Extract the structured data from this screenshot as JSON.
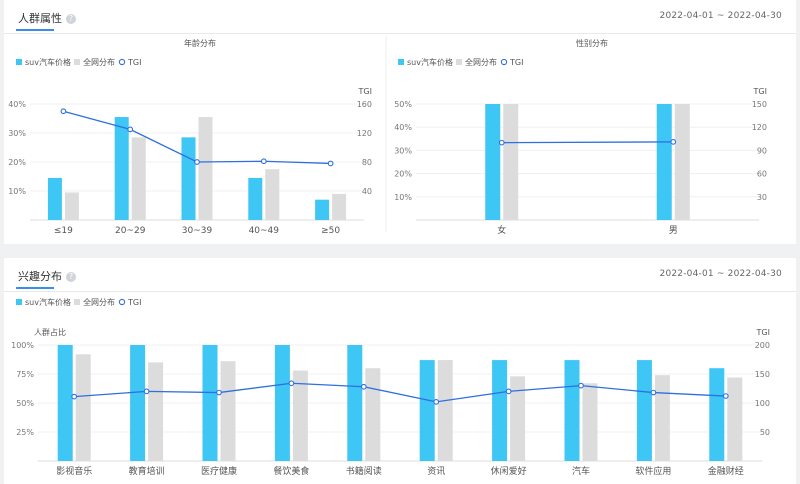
{
  "section1": {
    "title": "人群属性",
    "help": "?",
    "date_range": "2022-04-01 ~ 2022-04-30"
  },
  "section2": {
    "title": "兴趣分布",
    "help": "?",
    "date_range": "2022-04-01 ~ 2022-04-30"
  },
  "colors": {
    "suv": "#3ec6f5",
    "all": "#dcdcdc",
    "tgi": "#2f6fe0",
    "accent": "#3c8cf0"
  },
  "chart_data": [
    {
      "id": "age",
      "type": "bar",
      "title": "年龄分布",
      "legend": [
        "suv汽车价格",
        "全网分布",
        "TGI"
      ],
      "legend_position": "top-left",
      "categories": [
        "≤19",
        "20~29",
        "30~39",
        "40~49",
        "≥50"
      ],
      "series": [
        {
          "name": "suv汽车价格",
          "type": "bar",
          "values": [
            14.5,
            35.5,
            28.5,
            14.5,
            7
          ]
        },
        {
          "name": "全网分布",
          "type": "bar",
          "values": [
            9.5,
            28.5,
            35.5,
            17.5,
            9
          ]
        },
        {
          "name": "TGI",
          "type": "line",
          "axis": "right",
          "values": [
            150,
            125,
            80,
            81,
            78
          ]
        }
      ],
      "ylim": [
        0,
        40
      ],
      "yticks": [
        "10%",
        "20%",
        "30%",
        "40%"
      ],
      "y2label": "TGI",
      "y2lim": [
        0,
        160
      ],
      "y2ticks": [
        "40",
        "80",
        "120",
        "160"
      ]
    },
    {
      "id": "gender",
      "type": "bar",
      "title": "性别分布",
      "legend": [
        "suv汽车价格",
        "全网分布",
        "TGI"
      ],
      "legend_position": "top-left",
      "categories": [
        "女",
        "男"
      ],
      "series": [
        {
          "name": "suv汽车价格",
          "type": "bar",
          "values": [
            50,
            50
          ]
        },
        {
          "name": "全网分布",
          "type": "bar",
          "values": [
            50,
            50
          ]
        },
        {
          "name": "TGI",
          "type": "line",
          "axis": "right",
          "values": [
            100,
            101
          ]
        }
      ],
      "ylim": [
        0,
        50
      ],
      "yticks": [
        "10%",
        "20%",
        "30%",
        "40%",
        "50%"
      ],
      "y2label": "TGI",
      "y2lim": [
        0,
        150
      ],
      "y2ticks": [
        "30",
        "60",
        "90",
        "120",
        "150"
      ]
    },
    {
      "id": "interest",
      "type": "bar",
      "legend": [
        "suv汽车价格",
        "全网分布",
        "TGI"
      ],
      "legend_position": "top-left",
      "ylabel": "人群占比",
      "categories": [
        "影视音乐",
        "教育培训",
        "医疗健康",
        "餐饮美食",
        "书籍阅读",
        "资讯",
        "休闲爱好",
        "汽车",
        "软件应用",
        "金融财经"
      ],
      "series": [
        {
          "name": "suv汽车价格",
          "type": "bar",
          "values": [
            100,
            100,
            100,
            100,
            100,
            87,
            87,
            87,
            87,
            80
          ]
        },
        {
          "name": "全网分布",
          "type": "bar",
          "values": [
            92,
            85,
            86,
            78,
            80,
            87,
            73,
            67,
            74,
            72
          ]
        },
        {
          "name": "TGI",
          "type": "line",
          "axis": "right",
          "values": [
            111,
            120,
            118,
            134,
            128,
            102,
            120,
            130,
            118,
            112
          ]
        }
      ],
      "ylim": [
        0,
        100
      ],
      "yticks": [
        "25%",
        "50%",
        "75%",
        "100%"
      ],
      "y2label": "TGI",
      "y2lim": [
        0,
        200
      ],
      "y2ticks": [
        "50",
        "100",
        "150",
        "200"
      ]
    }
  ]
}
